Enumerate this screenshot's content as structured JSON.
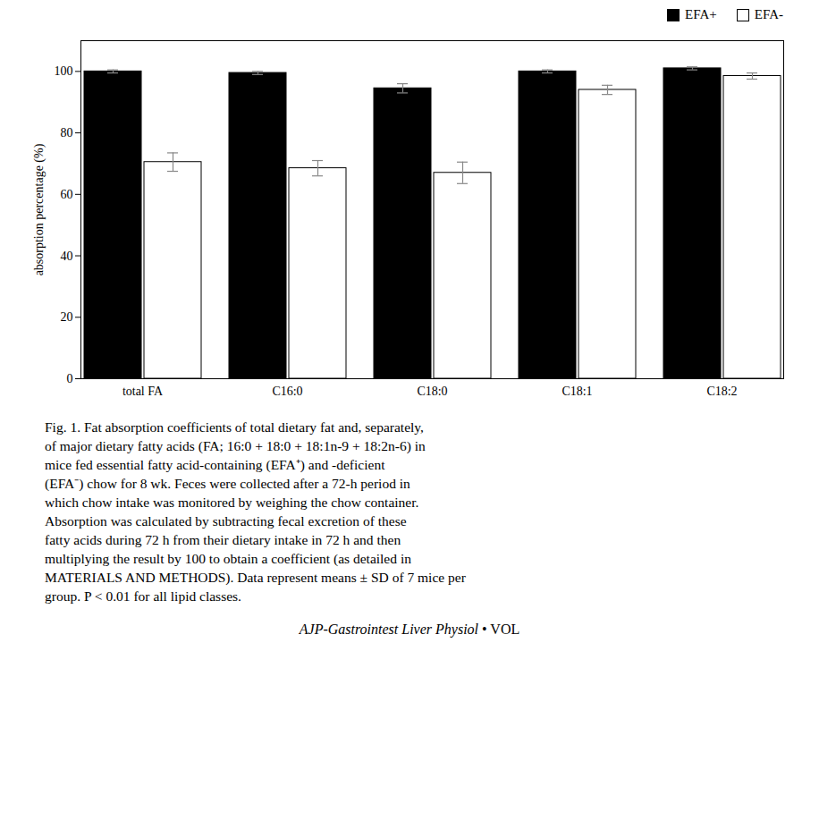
{
  "chart_data": {
    "type": "bar",
    "categories": [
      "total FA",
      "C16:0",
      "C18:0",
      "C18:1",
      "C18:2"
    ],
    "series": [
      {
        "name": "EFA+",
        "color": "#000000",
        "values": [
          100.0,
          99.5,
          94.5,
          100.0,
          101.0
        ],
        "errors": [
          0.5,
          0.5,
          1.5,
          0.5,
          0.5
        ]
      },
      {
        "name": "EFA-",
        "color": "#ffffff",
        "values": [
          70.5,
          68.5,
          67.0,
          94.0,
          98.5
        ],
        "errors": [
          3.0,
          2.5,
          3.5,
          1.5,
          1.0
        ]
      }
    ],
    "ylabel": "absorption percentage (%)",
    "ylim": [
      0,
      110
    ],
    "yticks": [
      0,
      20,
      40,
      60,
      80,
      100
    ],
    "grid": false,
    "legend": "upper right",
    "caption": [
      "Fig. 1.  Fat absorption coefficients of total dietary fat and, separately,",
      "of major dietary fatty acids (FA; 16:0 + 18:0 + 18:1n-9 + 18:2n-6) in",
      "mice fed essential fatty acid-containing (EFA⁺) and -deficient",
      "(EFA⁻) chow for 8 wk. Feces were collected after a 72-h period in",
      "which chow intake was monitored by weighing the chow container.",
      "Absorption was calculated by subtracting fecal excretion of these",
      "fatty acids during 72 h from their dietary intake in 72 h and then",
      "multiplying the result by 100 to obtain a coefficient (as detailed in",
      "MATERIALS AND METHODS). Data represent means ± SD of 7 mice per",
      "group. P < 0.01 for all lipid classes."
    ],
    "footer": [
      "AJP-Gastrointest Liver Physiol",
      "• VOL"
    ]
  }
}
